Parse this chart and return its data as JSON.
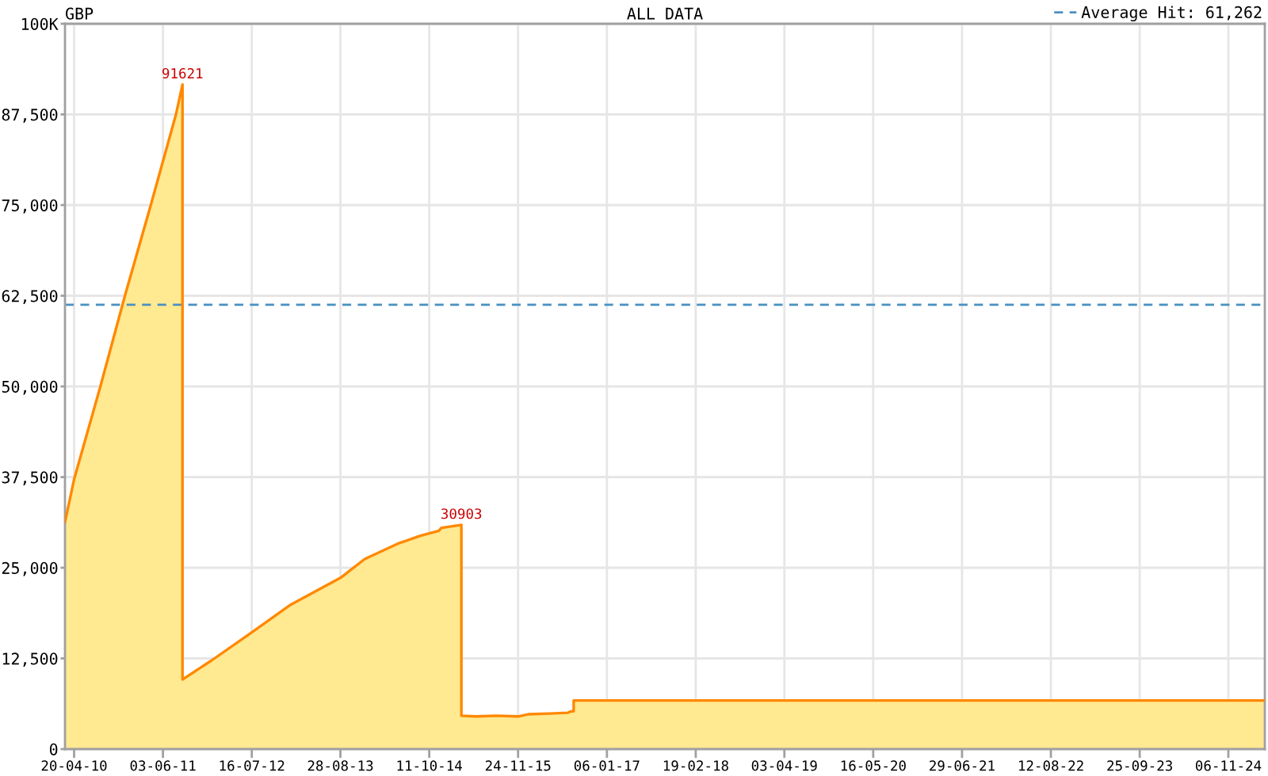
{
  "chart_data": {
    "type": "area",
    "title": "GBP",
    "subtitle": "ALL DATA",
    "x": [
      "2010-03-09",
      "2010-04-20",
      "2010-08-19",
      "2010-12-10",
      "2011-04-08",
      "2011-08-02",
      "2011-09-01",
      "2011-09-01",
      "2012-01-12",
      "2012-07-16",
      "2013-01-11",
      "2013-08-28",
      "2013-12-18",
      "2014-05-26",
      "2014-08-31",
      "2014-11-24",
      "2014-12-06",
      "2015-03-08",
      "2015-03-08",
      "2015-05-13",
      "2015-08-16",
      "2015-11-24",
      "2016-01-09",
      "2016-04-18",
      "2016-07-09",
      "2016-07-24",
      "2016-08-06",
      "2016-08-06",
      "2025-04-23"
    ],
    "series": [
      {
        "color": "#ff8800",
        "values": [
          31300,
          37200,
          50000,
          62500,
          75000,
          87500,
          91621,
          9600,
          12200,
          16100,
          19900,
          23600,
          26200,
          28400,
          29400,
          30100,
          30500,
          30903,
          4600,
          4500,
          4600,
          4500,
          4800,
          4900,
          5000,
          5200,
          5200,
          6700,
          6700
        ]
      }
    ],
    "xlim": [
      "2010-03-09",
      "2025-04-23"
    ],
    "xticks": [
      {
        "value": "2010-04-20",
        "label": "20-04-10"
      },
      {
        "value": "2011-06-03",
        "label": "03-06-11"
      },
      {
        "value": "2012-07-16",
        "label": "16-07-12"
      },
      {
        "value": "2013-08-28",
        "label": "28-08-13"
      },
      {
        "value": "2014-10-11",
        "label": "11-10-14"
      },
      {
        "value": "2015-11-24",
        "label": "24-11-15"
      },
      {
        "value": "2017-01-06",
        "label": "06-01-17"
      },
      {
        "value": "2018-02-19",
        "label": "19-02-18"
      },
      {
        "value": "2019-04-03",
        "label": "03-04-19"
      },
      {
        "value": "2020-05-16",
        "label": "16-05-20"
      },
      {
        "value": "2021-06-29",
        "label": "29-06-21"
      },
      {
        "value": "2022-08-12",
        "label": "12-08-22"
      },
      {
        "value": "2023-09-25",
        "label": "25-09-23"
      },
      {
        "value": "2024-11-06",
        "label": "06-11-24"
      }
    ],
    "ylim": [
      0,
      100000
    ],
    "yticks": [
      0,
      {
        "value": 12500,
        "label": "12,500"
      },
      {
        "value": 25000,
        "label": "25,000"
      },
      {
        "value": 37500,
        "label": "37,500"
      },
      {
        "value": 50000,
        "label": "50,000"
      },
      {
        "value": 62500,
        "label": "62,500"
      },
      {
        "value": 75000,
        "label": "75,000"
      },
      {
        "value": 87500,
        "label": "87,500"
      },
      {
        "value": 100000,
        "label": "100K"
      }
    ],
    "ref_lines": [
      {
        "axis": "y",
        "value": 61262,
        "label": "Average Hit: 61,262",
        "color": "#4a90c2",
        "line_style": "dashed"
      }
    ],
    "annotations": [
      {
        "text": "91621",
        "x": "2011-09-01",
        "y": 91621
      },
      {
        "text": "30903",
        "x": "2015-03-08",
        "y": 30903
      }
    ],
    "grid": true,
    "legend": "top right"
  }
}
